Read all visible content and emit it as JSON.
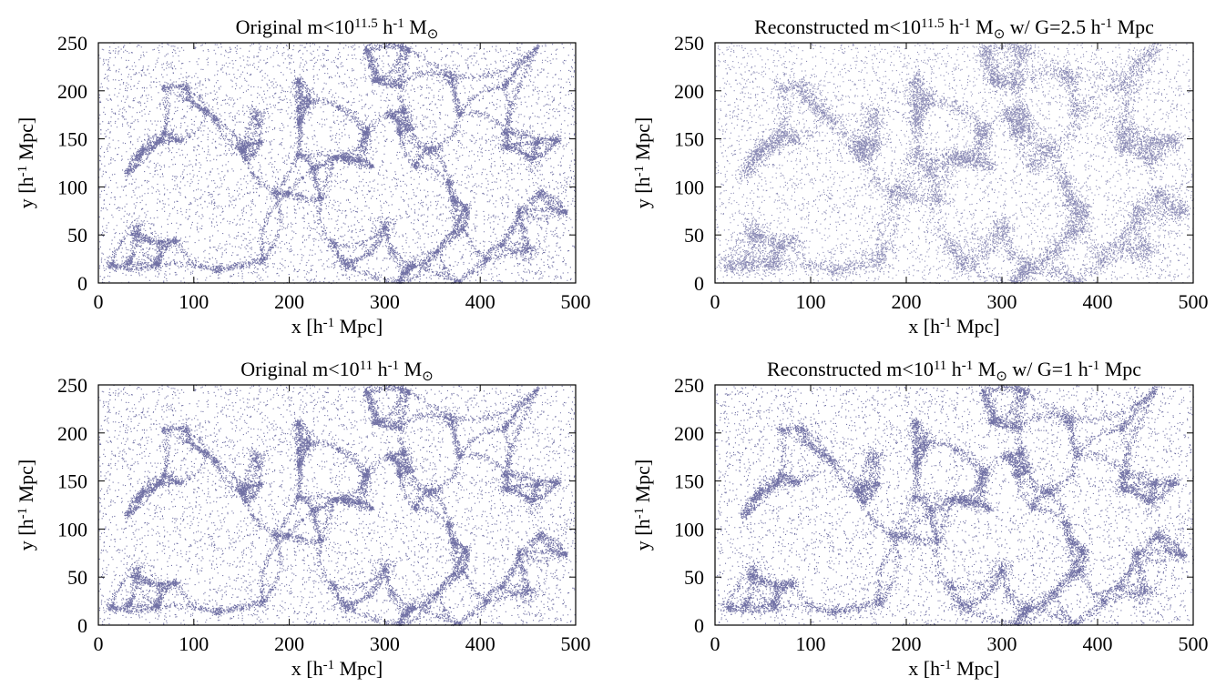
{
  "chart_data": [
    {
      "type": "scatter",
      "panel": "original-m11.5",
      "title_parts": [
        {
          "t": "Original   m<10"
        },
        {
          "t": "11.5",
          "sup": true
        },
        {
          "t": " h"
        },
        {
          "t": "-1",
          "sup": true
        },
        {
          "t": " M"
        },
        {
          "t": "⊙",
          "sub": true
        }
      ],
      "xlabel_parts": [
        {
          "t": "x  [h"
        },
        {
          "t": "-1",
          "sup": true
        },
        {
          "t": " Mpc]"
        }
      ],
      "ylabel_parts": [
        {
          "t": "y  [h"
        },
        {
          "t": "-1",
          "sup": true
        },
        {
          "t": " Mpc]"
        }
      ],
      "xlim": [
        0,
        500
      ],
      "ylim": [
        0,
        250
      ],
      "xticks": [
        0,
        100,
        200,
        300,
        400,
        500
      ],
      "yticks": [
        0,
        50,
        100,
        150,
        200,
        250
      ],
      "point_color": "#1a1a6e",
      "smoothing": 0,
      "seed": 11
    },
    {
      "type": "scatter",
      "panel": "reconstructed-m11.5",
      "title_parts": [
        {
          "t": "Reconstructed   m<10"
        },
        {
          "t": "11.5",
          "sup": true
        },
        {
          "t": " h"
        },
        {
          "t": "-1",
          "sup": true
        },
        {
          "t": " M"
        },
        {
          "t": "⊙",
          "sub": true
        },
        {
          "t": " w/ G=2.5 h"
        },
        {
          "t": "-1",
          "sup": true
        },
        {
          "t": " Mpc"
        }
      ],
      "xlabel_parts": [
        {
          "t": "x  [h"
        },
        {
          "t": "-1",
          "sup": true
        },
        {
          "t": " Mpc]"
        }
      ],
      "ylabel_parts": [
        {
          "t": "y  [h"
        },
        {
          "t": "-1",
          "sup": true
        },
        {
          "t": " Mpc]"
        }
      ],
      "xlim": [
        0,
        500
      ],
      "ylim": [
        0,
        250
      ],
      "xticks": [
        0,
        100,
        200,
        300,
        400,
        500
      ],
      "yticks": [
        0,
        50,
        100,
        150,
        200,
        250
      ],
      "point_color": "#1a1a6e",
      "smoothing": 2.5,
      "seed": 11
    },
    {
      "type": "scatter",
      "panel": "original-m11",
      "title_parts": [
        {
          "t": "Original   m<10"
        },
        {
          "t": "11",
          "sup": true
        },
        {
          "t": " h"
        },
        {
          "t": "-1",
          "sup": true
        },
        {
          "t": " M"
        },
        {
          "t": "⊙",
          "sub": true
        }
      ],
      "xlabel_parts": [
        {
          "t": "x  [h"
        },
        {
          "t": "-1",
          "sup": true
        },
        {
          "t": " Mpc]"
        }
      ],
      "ylabel_parts": [
        {
          "t": "y  [h"
        },
        {
          "t": "-1",
          "sup": true
        },
        {
          "t": " Mpc]"
        }
      ],
      "xlim": [
        0,
        500
      ],
      "ylim": [
        0,
        250
      ],
      "xticks": [
        0,
        100,
        200,
        300,
        400,
        500
      ],
      "yticks": [
        0,
        50,
        100,
        150,
        200,
        250
      ],
      "point_color": "#1a1a6e",
      "smoothing": 0,
      "seed": 11
    },
    {
      "type": "scatter",
      "panel": "reconstructed-m11",
      "title_parts": [
        {
          "t": "Reconstructed   m<10"
        },
        {
          "t": "11",
          "sup": true
        },
        {
          "t": " h"
        },
        {
          "t": "-1",
          "sup": true
        },
        {
          "t": " M"
        },
        {
          "t": "⊙",
          "sub": true
        },
        {
          "t": " w/ G=1 h"
        },
        {
          "t": "-1",
          "sup": true
        },
        {
          "t": " Mpc"
        }
      ],
      "xlabel_parts": [
        {
          "t": "x  [h"
        },
        {
          "t": "-1",
          "sup": true
        },
        {
          "t": " Mpc]"
        }
      ],
      "ylabel_parts": [
        {
          "t": "y  [h"
        },
        {
          "t": "-1",
          "sup": true
        },
        {
          "t": " Mpc]"
        }
      ],
      "xlim": [
        0,
        500
      ],
      "ylim": [
        0,
        250
      ],
      "xticks": [
        0,
        100,
        200,
        300,
        400,
        500
      ],
      "yticks": [
        0,
        50,
        100,
        150,
        200,
        250
      ],
      "point_color": "#1a1a6e",
      "smoothing": 1,
      "seed": 11
    }
  ]
}
